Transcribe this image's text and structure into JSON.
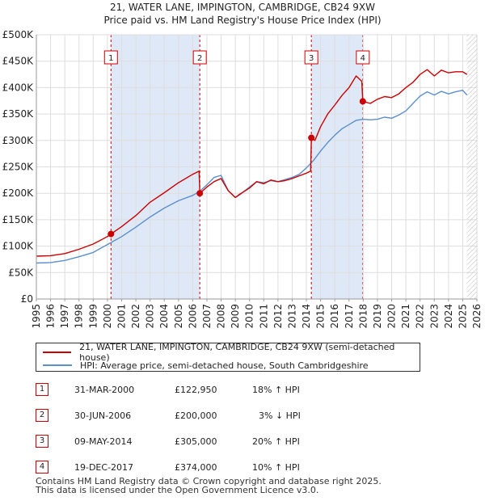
{
  "title_line1": "21, WATER LANE, IMPINGTON, CAMBRIDGE, CB24 9XW",
  "title_line2": "Price paid vs. HM Land Registry's House Price Index (HPI)",
  "legend": {
    "property_label": "21, WATER LANE, IMPINGTON, CAMBRIDGE, CB24 9XW (semi-detached house)",
    "hpi_label": "HPI: Average price, semi-detached house, South Cambridgeshire"
  },
  "colors": {
    "property": "#cc0000",
    "hpi": "#5b8fcc",
    "shade": "#dfe8f7",
    "grid": "#dddddd",
    "badge_border": "#cc0000"
  },
  "sales": [
    {
      "num": "1",
      "date": "31-MAR-2000",
      "price": "£122,950",
      "hpi_delta": "18% ↑ HPI"
    },
    {
      "num": "2",
      "date": "30-JUN-2006",
      "price": "£200,000",
      "hpi_delta": "3% ↓ HPI"
    },
    {
      "num": "3",
      "date": "09-MAY-2014",
      "price": "£305,000",
      "hpi_delta": "20% ↑ HPI"
    },
    {
      "num": "4",
      "date": "19-DEC-2017",
      "price": "£374,000",
      "hpi_delta": "10% ↑ HPI"
    }
  ],
  "footer_line1": "Contains HM Land Registry data © Crown copyright and database right 2025.",
  "footer_line2": "This data is licensed under the Open Government Licence v3.0.",
  "chart_data": {
    "type": "line",
    "title": "Price paid vs. HM Land Registry's House Price Index (HPI)",
    "xlabel": "",
    "ylabel": "",
    "xlim": [
      1995,
      2026
    ],
    "ylim": [
      0,
      500000
    ],
    "x_ticks": [
      "1995",
      "1996",
      "1997",
      "1998",
      "1999",
      "2000",
      "2001",
      "2002",
      "2003",
      "2004",
      "2005",
      "2006",
      "2007",
      "2008",
      "2009",
      "2010",
      "2011",
      "2012",
      "2013",
      "2014",
      "2015",
      "2016",
      "2017",
      "2018",
      "2019",
      "2020",
      "2021",
      "2022",
      "2023",
      "2024",
      "2025",
      "2026"
    ],
    "y_ticks": [
      {
        "value": 0,
        "label": "£0"
      },
      {
        "value": 50000,
        "label": "£50K"
      },
      {
        "value": 100000,
        "label": "£100K"
      },
      {
        "value": 150000,
        "label": "£150K"
      },
      {
        "value": 200000,
        "label": "£200K"
      },
      {
        "value": 250000,
        "label": "£250K"
      },
      {
        "value": 300000,
        "label": "£300K"
      },
      {
        "value": 350000,
        "label": "£350K"
      },
      {
        "value": 400000,
        "label": "£400K"
      },
      {
        "value": 450000,
        "label": "£450K"
      },
      {
        "value": 500000,
        "label": "£500K"
      }
    ],
    "shaded_ranges": [
      [
        2000.25,
        2006.5
      ],
      [
        2014.35,
        2017.97
      ]
    ],
    "future_hatch_from": 2025.3,
    "sale_markers": [
      {
        "label": "1",
        "x": 2000.25,
        "y": 122950
      },
      {
        "label": "2",
        "x": 2006.5,
        "y": 200000
      },
      {
        "label": "3",
        "x": 2014.35,
        "y": 305000
      },
      {
        "label": "4",
        "x": 2017.97,
        "y": 374000
      }
    ],
    "series": [
      {
        "name": "21, WATER LANE, IMPINGTON, CAMBRIDGE, CB24 9XW (semi-detached house)",
        "x": [
          1995,
          1996,
          1997,
          1998,
          1999,
          2000,
          2000.25,
          2001,
          2002,
          2003,
          2004,
          2005,
          2006,
          2006.45,
          2006.5,
          2007,
          2007.5,
          2008,
          2008.5,
          2009,
          2009.3,
          2010,
          2010.5,
          2011,
          2011.5,
          2012,
          2012.5,
          2013,
          2013.5,
          2014,
          2014.3,
          2014.35,
          2014.6,
          2015,
          2015.5,
          2016,
          2016.5,
          2017,
          2017.5,
          2017.9,
          2017.97,
          2018.5,
          2019,
          2019.5,
          2020,
          2020.5,
          2021,
          2021.5,
          2022,
          2022.5,
          2023,
          2023.5,
          2024,
          2024.5,
          2025,
          2025.3
        ],
        "values": [
          81000,
          82000,
          86000,
          94000,
          104000,
          118000,
          122950,
          137000,
          158000,
          183000,
          201000,
          220000,
          236000,
          242000,
          200000,
          212000,
          222000,
          228000,
          205000,
          192000,
          198000,
          210000,
          222000,
          218000,
          225000,
          222000,
          224000,
          228000,
          233000,
          238000,
          242000,
          305000,
          300000,
          326000,
          350000,
          367000,
          385000,
          400000,
          422000,
          412000,
          374000,
          370000,
          378000,
          383000,
          381000,
          388000,
          400000,
          410000,
          425000,
          434000,
          422000,
          433000,
          428000,
          430000,
          430000,
          425000
        ]
      },
      {
        "name": "HPI: Average price, semi-detached house, South Cambridgeshire",
        "x": [
          1995,
          1996,
          1997,
          1998,
          1999,
          2000,
          2001,
          2002,
          2003,
          2004,
          2005,
          2006,
          2006.5,
          2007,
          2007.5,
          2008,
          2008.5,
          2009,
          2009.3,
          2010,
          2010.5,
          2011,
          2011.5,
          2012,
          2012.5,
          2013,
          2013.5,
          2014,
          2014.5,
          2015,
          2015.5,
          2016,
          2016.5,
          2017,
          2017.5,
          2018,
          2018.5,
          2019,
          2019.5,
          2020,
          2020.5,
          2021,
          2021.5,
          2022,
          2022.5,
          2023,
          2023.5,
          2024,
          2024.5,
          2025,
          2025.3
        ],
        "values": [
          68000,
          69000,
          73000,
          80000,
          88000,
          103000,
          118000,
          136000,
          155000,
          172000,
          186000,
          196000,
          204000,
          216000,
          230000,
          234000,
          205000,
          192000,
          197000,
          212000,
          222000,
          220000,
          224000,
          222000,
          226000,
          230000,
          236000,
          248000,
          262000,
          280000,
          296000,
          310000,
          322000,
          330000,
          338000,
          340000,
          339000,
          340000,
          344000,
          342000,
          348000,
          356000,
          370000,
          384000,
          392000,
          386000,
          393000,
          388000,
          392000,
          395000,
          386000
        ]
      }
    ]
  }
}
